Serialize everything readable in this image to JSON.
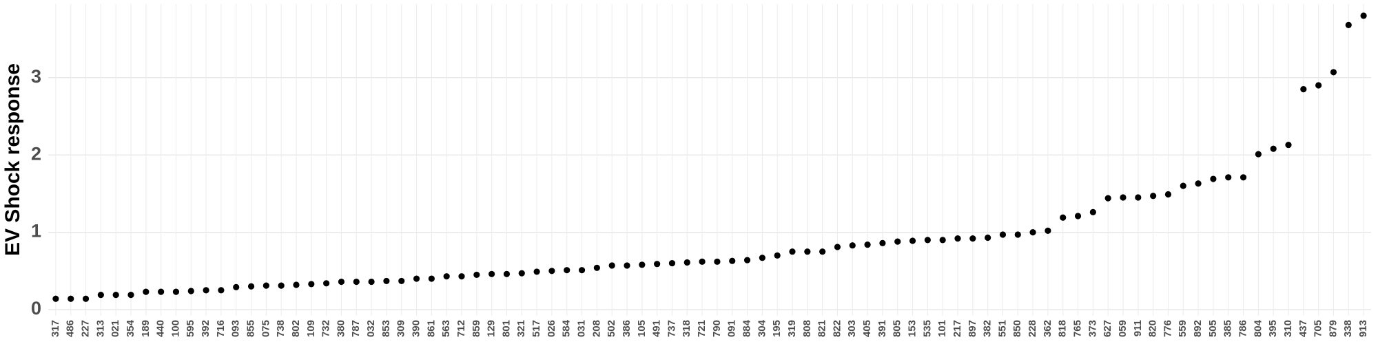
{
  "chart_data": {
    "type": "scatter",
    "y_label": "EV Shock response",
    "categories": [
      "317",
      "486",
      "227",
      "313",
      "021",
      "354",
      "189",
      "440",
      "100",
      "595",
      "392",
      "716",
      "093",
      "855",
      "075",
      "738",
      "802",
      "109",
      "732",
      "380",
      "787",
      "032",
      "853",
      "309",
      "390",
      "861",
      "563",
      "712",
      "859",
      "129",
      "801",
      "321",
      "517",
      "026",
      "584",
      "031",
      "208",
      "502",
      "386",
      "105",
      "491",
      "737",
      "318",
      "721",
      "790",
      "091",
      "884",
      "304",
      "195",
      "319",
      "808",
      "821",
      "822",
      "303",
      "405",
      "391",
      "805",
      "153",
      "535",
      "101",
      "217",
      "897",
      "382",
      "551",
      "850",
      "228",
      "362",
      "818",
      "765",
      "373",
      "627",
      "059",
      "911",
      "820",
      "776",
      "559",
      "892",
      "505",
      "385",
      "786",
      "804",
      "395",
      "310",
      "437",
      "705",
      "879",
      "338",
      "913"
    ],
    "values": [
      0.14,
      0.14,
      0.14,
      0.19,
      0.19,
      0.19,
      0.23,
      0.23,
      0.23,
      0.24,
      0.25,
      0.25,
      0.29,
      0.3,
      0.31,
      0.31,
      0.32,
      0.33,
      0.34,
      0.36,
      0.36,
      0.36,
      0.37,
      0.37,
      0.4,
      0.4,
      0.43,
      0.43,
      0.45,
      0.46,
      0.46,
      0.47,
      0.49,
      0.5,
      0.51,
      0.51,
      0.54,
      0.57,
      0.57,
      0.58,
      0.59,
      0.6,
      0.61,
      0.62,
      0.62,
      0.63,
      0.64,
      0.67,
      0.7,
      0.75,
      0.75,
      0.75,
      0.81,
      0.83,
      0.84,
      0.86,
      0.88,
      0.89,
      0.9,
      0.9,
      0.92,
      0.92,
      0.93,
      0.97,
      0.97,
      1.0,
      1.02,
      1.19,
      1.21,
      1.26,
      1.44,
      1.45,
      1.45,
      1.47,
      1.49,
      1.6,
      1.63,
      1.69,
      1.71,
      1.71,
      2.01,
      2.08,
      2.13,
      2.85,
      2.9,
      3.07,
      3.68,
      3.8
    ],
    "color": "#000000",
    "ylim": [
      -0.08,
      3.95
    ],
    "yticks": [
      0,
      1,
      2,
      3
    ],
    "grid": true
  }
}
